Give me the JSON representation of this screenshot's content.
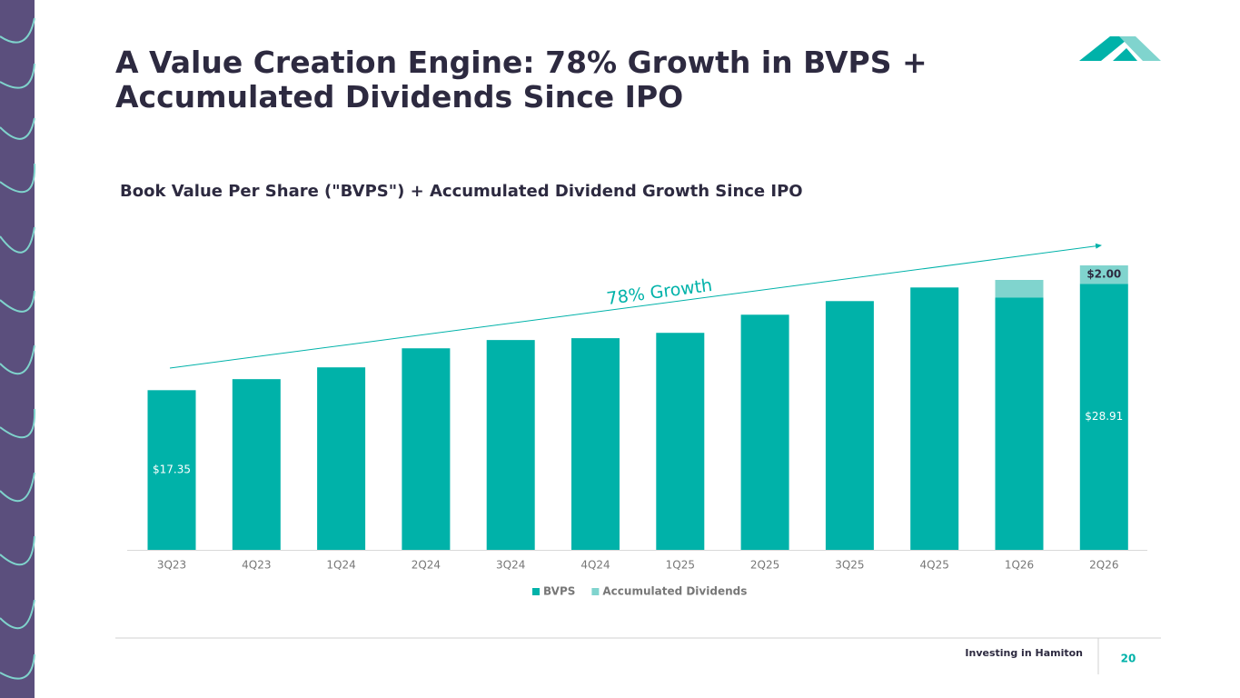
{
  "chart_data": {
    "type": "stacked_bar",
    "title": "A Value Creation Engine: 78% Growth in BVPS + Accumulated Dividends Since IPO",
    "subtitle": "Book Value Per Share (\"BVPS\") + Accumulated Dividend Growth Since IPO",
    "annotation": "78% Growth",
    "categories": [
      "3Q23",
      "4Q23",
      "1Q24",
      "2Q24",
      "3Q24",
      "4Q24",
      "1Q25",
      "2Q25",
      "3Q25",
      "4Q25",
      "1Q26",
      "2Q26"
    ],
    "series": [
      {
        "name": "BVPS",
        "color": "#00b2a9",
        "values": [
          17.35,
          18.55,
          19.83,
          21.9,
          22.8,
          23.0,
          23.58,
          25.55,
          27.03,
          28.51,
          27.43,
          28.91
        ],
        "value_labels": [
          "$17.35",
          null,
          null,
          null,
          null,
          null,
          null,
          null,
          null,
          null,
          null,
          "$28.91"
        ]
      },
      {
        "name": "Accumulated Dividends",
        "color": "#80d4ce",
        "values": [
          null,
          null,
          null,
          null,
          null,
          null,
          null,
          null,
          null,
          null,
          1.9,
          2.0
        ],
        "value_labels": [
          null,
          null,
          null,
          null,
          null,
          null,
          null,
          null,
          null,
          null,
          null,
          "$2.00"
        ]
      }
    ],
    "footer": "Investing in Hamiton",
    "page_number": "20"
  }
}
